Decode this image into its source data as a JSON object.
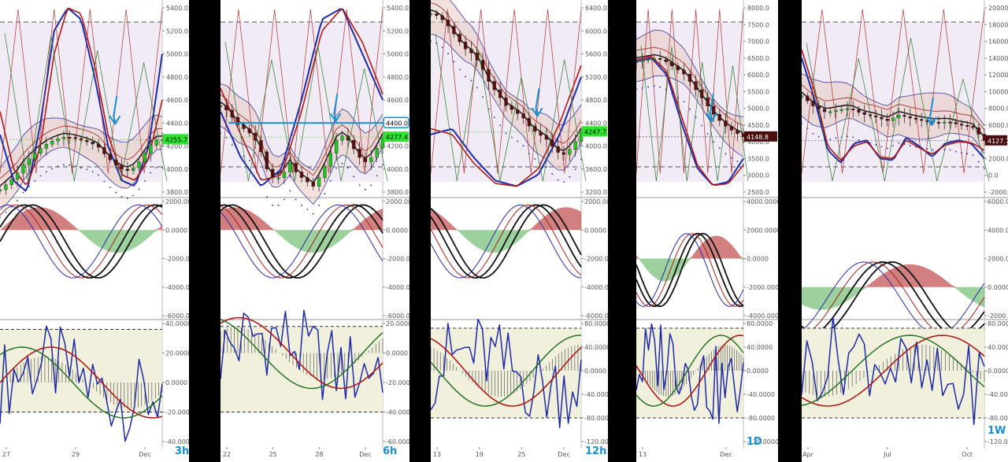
{
  "colors": {
    "axis_text": "#555555",
    "up_candle": "#22c422",
    "down_candle": "#5a0f0f",
    "blue": "#1e2aa8",
    "red": "#b01818",
    "green": "#1c6d1c",
    "annotation": "#1a8fd0",
    "price_badge_green": "#2ee52e",
    "price_badge_dark": "#4a0d0d",
    "band_fill": "#ece6f2",
    "osc_fill": "#f0f0dc"
  },
  "chart_data": [
    {
      "type": "line",
      "timeframe_label": "3h",
      "x_ticks": [
        "27",
        "29",
        "Dec"
      ],
      "price_axis": {
        "ticks": [
          "5400.0",
          "5200.0",
          "5000.0",
          "4800.0",
          "4600.0",
          "4400.0",
          "4200.0",
          "4000.0",
          "3800.0"
        ],
        "ylim": [
          3800,
          5400
        ]
      },
      "last_price": "4255.7",
      "mid_axis": {
        "ticks": [
          "2000.0000",
          "0.0000",
          "-2000.0000",
          "-4000.0000",
          "-6000.0000"
        ],
        "ylim": [
          -6000,
          2000
        ]
      },
      "osc_axis": {
        "ticks": [
          "40.0000",
          "20.0000",
          "0.0000",
          "-20.0000",
          "-40.0000"
        ],
        "ylim": [
          -40,
          40
        ]
      },
      "price_series": [
        3820,
        3880,
        3950,
        4050,
        4120,
        4180,
        4230,
        4260,
        4280,
        4270,
        4250,
        4230,
        4200,
        4120,
        4050,
        4000,
        3980,
        4050,
        4150,
        4250,
        4255.7
      ],
      "sine_blue": [
        4300,
        3900,
        3800,
        4400,
        5200,
        5400,
        5300,
        4800,
        4200,
        3900,
        3850,
        4200,
        5000
      ],
      "sine_red": [
        4500,
        4000,
        3850,
        4200,
        5000,
        5400,
        5350,
        4900,
        4300,
        3950,
        3900,
        4100,
        4600
      ]
    },
    {
      "type": "line",
      "timeframe_label": "6h",
      "x_ticks": [
        "22",
        "25",
        "28",
        "Dec"
      ],
      "price_axis": {
        "ticks": [
          "5400.0",
          "5200.0",
          "5000.0",
          "4800.0",
          "4600.0",
          "4400.0",
          "4200.0",
          "4000.0",
          "3800.0"
        ],
        "ylim": [
          3800,
          5400
        ]
      },
      "last_price": "4277.4",
      "level_label": "4400.0",
      "mid_axis": {
        "ticks": [
          "2000.0000",
          "0.0000",
          "-2000.0000",
          "-4000.0000",
          "-6000.0000"
        ],
        "ylim": [
          -6000,
          2000
        ]
      },
      "osc_axis": {
        "ticks": [
          "20.0000",
          "0.0000",
          "-20.0000",
          "-40.0000",
          "-60.0000"
        ],
        "ylim": [
          -60,
          20
        ]
      },
      "price_series": [
        4550,
        4500,
        4400,
        4350,
        4300,
        4200,
        4000,
        3900,
        3950,
        4050,
        3950,
        3900,
        3850,
        3950,
        4100,
        4250,
        4300,
        4200,
        4100,
        4050,
        4150,
        4277.4
      ],
      "sine_blue": [
        4500,
        4100,
        3850,
        4000,
        4600,
        5300,
        5400,
        5000,
        4600
      ],
      "sine_red": [
        4700,
        4300,
        3900,
        3950,
        4500,
        5200,
        5400,
        5100,
        4650
      ]
    },
    {
      "type": "line",
      "timeframe_label": "12h",
      "x_ticks": [
        "13",
        "19",
        "25",
        "Dec"
      ],
      "price_axis": {
        "ticks": [
          "6400.0",
          "6000.0",
          "5600.0",
          "5200.0",
          "4800.0",
          "4400.0",
          "4000.0",
          "3600.0",
          "3200.0"
        ],
        "ylim": [
          3200,
          6400
        ]
      },
      "last_price": "4247.7",
      "mid_axis": {
        "ticks": [
          "2000.0000",
          "0.0000",
          "-2000.0000",
          "-4000.0000",
          "-6000.0000"
        ],
        "ylim": [
          -6000,
          2000
        ]
      },
      "osc_axis": {
        "ticks": [
          "80.0000",
          "40.0000",
          "0.0000",
          "-40.0000",
          "-80.0000",
          "-120.0000"
        ],
        "ylim": [
          -120,
          80
        ]
      },
      "price_series": [
        6300,
        6250,
        6100,
        5900,
        5700,
        5600,
        5400,
        5100,
        4900,
        4700,
        4600,
        4500,
        4300,
        4200,
        4100,
        3900,
        3850,
        4000,
        4247.7
      ],
      "sine_blue": [
        4200,
        4300,
        3800,
        3400,
        3300,
        3500,
        4200,
        5200
      ],
      "sine_red": [
        4300,
        4200,
        3700,
        3350,
        3300,
        3600,
        4400,
        5400
      ]
    },
    {
      "type": "line",
      "timeframe_label": "1D",
      "x_ticks": [
        "13",
        "Dec"
      ],
      "price_axis": {
        "ticks": [
          "8000.0",
          "7500.0",
          "7000.0",
          "6500.0",
          "6000.0",
          "5500.0",
          "5000.0",
          "4500.0",
          "4000.0",
          "3500.0",
          "3000.0",
          "2500.0"
        ],
        "ylim": [
          2500,
          8000
        ]
      },
      "last_price": "4148.8",
      "mid_axis": {
        "ticks": [
          "4000.0000",
          "2000.0000",
          "0.0000",
          "-2000.0000",
          "-4000.0000"
        ],
        "ylim": [
          -4000,
          4000
        ]
      },
      "osc_axis": {
        "ticks": [
          "80.0000",
          "40.0000",
          "0.0000",
          "-40.0000",
          "-80.0000",
          "-120.0000"
        ],
        "ylim": [
          -120,
          80
        ]
      },
      "price_series": [
        6400,
        6450,
        6500,
        6400,
        6200,
        6000,
        5600,
        5200,
        4800,
        4500,
        4300,
        4148.8
      ],
      "sine_blue": [
        6400,
        6500,
        6000,
        4500,
        3200,
        2700,
        2800,
        3500
      ],
      "sine_red": [
        6450,
        6550,
        6100,
        4700,
        3300,
        2700,
        2750,
        3300
      ]
    },
    {
      "type": "line",
      "timeframe_label": "1W",
      "x_ticks": [
        "Apr",
        "Jul",
        "Oct"
      ],
      "price_axis": {
        "ticks": [
          "20000.0",
          "18000.0",
          "16000.0",
          "14000.0",
          "12000.0",
          "10000.0",
          "8000.0",
          "6000.0",
          "4000.0",
          "2000.0",
          "0.0",
          "-2000.0"
        ],
        "ylim": [
          -2000,
          20000
        ]
      },
      "last_price": "4127.7",
      "mid_axis": {
        "ticks": [
          "6000.0000",
          "4000.0000",
          "2000.0000",
          "0.0000",
          "-2000.0000"
        ],
        "ylim": [
          -2000,
          6000
        ]
      },
      "osc_axis": {
        "ticks": [
          "80.0000",
          "40.0000",
          "0.0000",
          "-40.0000",
          "-80.0000",
          "-120.0000"
        ],
        "ylim": [
          -120,
          80
        ]
      },
      "price_series": [
        9500,
        8200,
        7500,
        7800,
        8000,
        7300,
        7000,
        6500,
        7200,
        6800,
        6500,
        6300,
        6400,
        6000,
        5800,
        4127.7
      ],
      "sine_blue": [
        14000,
        9000,
        3000,
        1500,
        3800,
        4200,
        2000,
        1800,
        4500,
        3500,
        2200,
        3800,
        4200,
        3800,
        2000
      ],
      "sine_red": [
        15000,
        10000,
        3500,
        1800,
        3500,
        4000,
        2200,
        2000,
        4200,
        3300,
        2500,
        3600,
        4000,
        3900,
        3000
      ]
    }
  ]
}
